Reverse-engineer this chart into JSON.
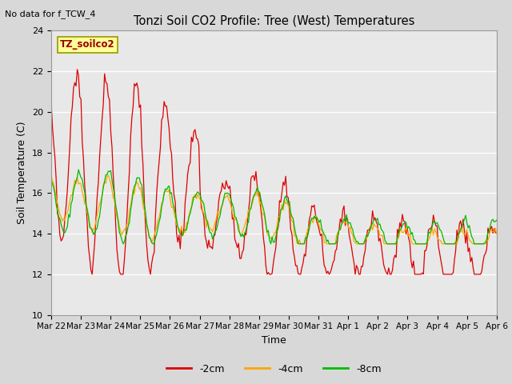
{
  "title": "Tonzi Soil CO2 Profile: Tree (West) Temperatures",
  "xlabel": "Time",
  "ylabel": "Soil Temperature (C)",
  "no_data_label": "No data for f_TCW_4",
  "station_label": "TZ_soilco2",
  "ylim": [
    10,
    24
  ],
  "yticks": [
    10,
    12,
    14,
    16,
    18,
    20,
    22,
    24
  ],
  "fig_bg_color": "#d8d8d8",
  "plot_bg_color": "#e8e8e8",
  "grid_color": "#ffffff",
  "line_colors": {
    "-2cm": "#dd0000",
    "-4cm": "#ffa500",
    "-8cm": "#00bb00"
  },
  "x_tick_labels": [
    "Mar 22",
    "Mar 23",
    "Mar 24",
    "Mar 25",
    "Mar 26",
    "Mar 27",
    "Mar 28",
    "Mar 29",
    "Mar 30",
    "Mar 31",
    "Apr 1",
    "Apr 2",
    "Apr 3",
    "Apr 4",
    "Apr 5",
    "Apr 6"
  ],
  "n_days": 15,
  "hours_per_day": 24
}
